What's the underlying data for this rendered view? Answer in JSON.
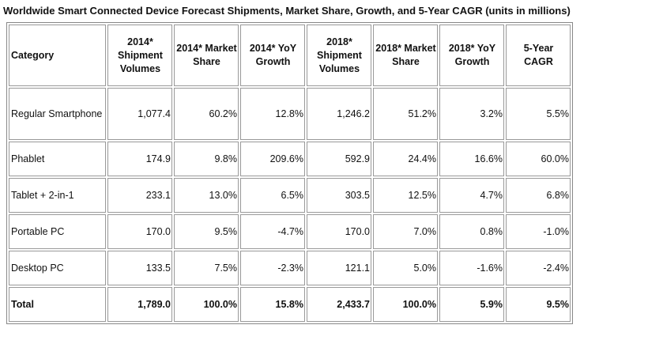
{
  "header": {
    "title": "Worldwide Smart Connected Device Forecast Shipments, Market Share, Growth, and 5-Year CAGR (units in millions)"
  },
  "table": {
    "columns": [
      "Category",
      "2014* Shipment Volumes",
      "2014* Market Share",
      "2014* YoY Growth",
      "2018* Shipment Volumes",
      "2018* Market Share",
      "2018* YoY Growth",
      "5-Year CAGR"
    ],
    "rows": [
      [
        "Regular Smartphone",
        "1,077.4",
        "60.2%",
        "12.8%",
        "1,246.2",
        "51.2%",
        "3.2%",
        "5.5%"
      ],
      [
        "Phablet",
        "174.9",
        "9.8%",
        "209.6%",
        "592.9",
        "24.4%",
        "16.6%",
        "60.0%"
      ],
      [
        "Tablet + 2-in-1",
        "233.1",
        "13.0%",
        "6.5%",
        "303.5",
        "12.5%",
        "4.7%",
        "6.8%"
      ],
      [
        "Portable PC",
        "170.0",
        "9.5%",
        "-4.7%",
        "170.0",
        "7.0%",
        "0.8%",
        "-1.0%"
      ],
      [
        "Desktop PC",
        "133.5",
        "7.5%",
        "-2.3%",
        "121.1",
        "5.0%",
        "-1.6%",
        "-2.4%"
      ],
      [
        "Total",
        "1,789.0",
        "100.0%",
        "15.8%",
        "2,433.7",
        "100.0%",
        "5.9%",
        "9.5%"
      ]
    ]
  }
}
